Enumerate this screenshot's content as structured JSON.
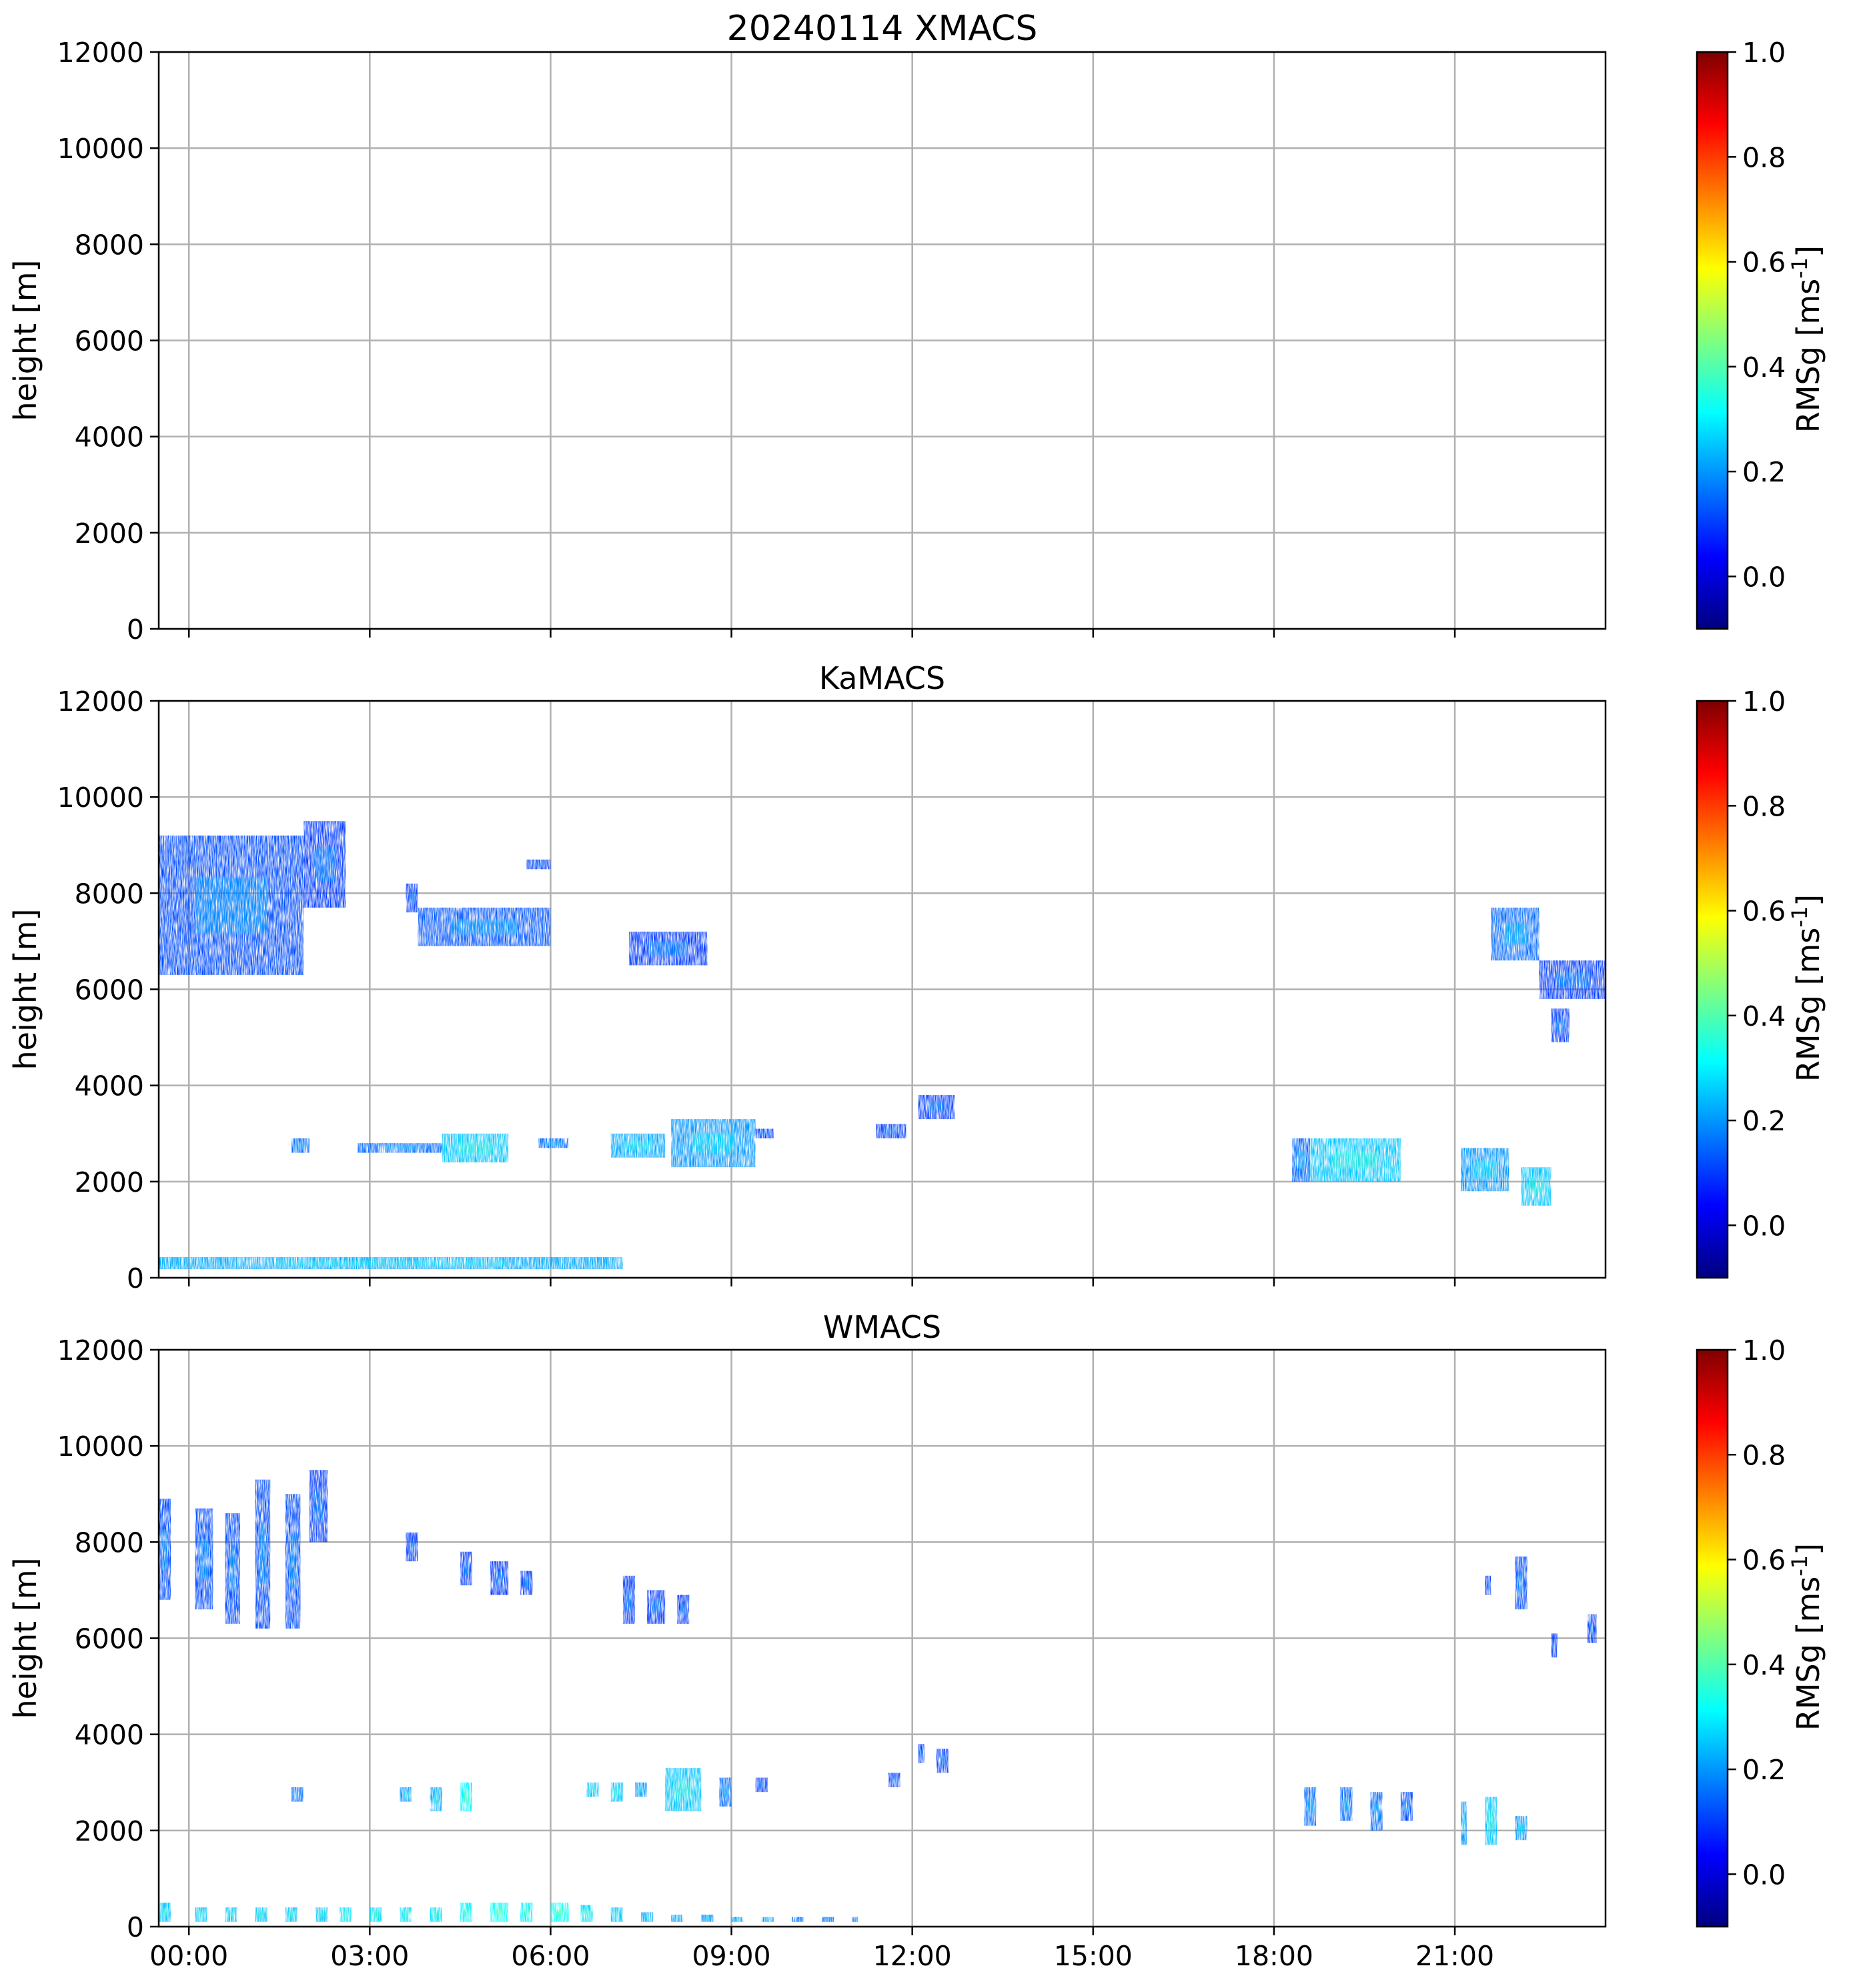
{
  "colormap": {
    "name": "jet",
    "stops": [
      "#00007f",
      "#0000ff",
      "#007fff",
      "#00ffff",
      "#7fff7f",
      "#ffff00",
      "#ff7f00",
      "#ff0000",
      "#7f0000"
    ]
  },
  "chart_data": [
    {
      "type": "heatmap",
      "title": "20240114 XMACS",
      "ylabel": "height [m]",
      "ylim": [
        0,
        12000
      ],
      "yticks": [
        "0",
        "2000",
        "4000",
        "6000",
        "8000",
        "10000",
        "12000"
      ],
      "xlim_hours": [
        -0.5,
        23.5
      ],
      "show_xticklabels": false,
      "colorbar": {
        "label": "RMSg [ms",
        "label_sup": "-1",
        "label_end": "]",
        "range": [
          -0.1,
          1.0
        ],
        "ticks": [
          "0.0",
          "0.2",
          "0.4",
          "0.6",
          "0.8",
          "1.0"
        ]
      },
      "features": []
    },
    {
      "type": "heatmap",
      "title": "KaMACS",
      "ylabel": "height [m]",
      "ylim": [
        0,
        12000
      ],
      "yticks": [
        "0",
        "2000",
        "4000",
        "6000",
        "8000",
        "10000",
        "12000"
      ],
      "xlim_hours": [
        -0.5,
        23.5
      ],
      "show_xticklabels": false,
      "colorbar": {
        "label": "RMSg [ms",
        "label_sup": "-1",
        "label_end": "]",
        "range": [
          -0.1,
          1.0
        ],
        "ticks": [
          "0.0",
          "0.2",
          "0.4",
          "0.6",
          "0.8",
          "1.0"
        ]
      },
      "features": [
        {
          "t0": -0.5,
          "t1": 1.9,
          "h0": 6300,
          "h1": 9200,
          "rms": 0.12
        },
        {
          "t0": 1.9,
          "t1": 2.6,
          "h0": 7700,
          "h1": 9500,
          "rms": 0.1
        },
        {
          "t0": 3.6,
          "t1": 3.8,
          "h0": 7600,
          "h1": 8200,
          "rms": 0.1
        },
        {
          "t0": 3.8,
          "t1": 6.0,
          "h0": 6900,
          "h1": 7700,
          "rms": 0.13
        },
        {
          "t0": 5.6,
          "t1": 6.0,
          "h0": 8500,
          "h1": 8700,
          "rms": 0.1
        },
        {
          "t0": 7.3,
          "t1": 8.6,
          "h0": 6500,
          "h1": 7200,
          "rms": 0.1
        },
        {
          "t0": 1.7,
          "t1": 2.0,
          "h0": 2600,
          "h1": 2900,
          "rms": 0.15
        },
        {
          "t0": 2.8,
          "t1": 4.2,
          "h0": 2600,
          "h1": 2800,
          "rms": 0.15
        },
        {
          "t0": 4.2,
          "t1": 5.3,
          "h0": 2400,
          "h1": 3000,
          "rms": 0.25
        },
        {
          "t0": 5.8,
          "t1": 6.3,
          "h0": 2700,
          "h1": 2900,
          "rms": 0.15
        },
        {
          "t0": 7.0,
          "t1": 7.9,
          "h0": 2500,
          "h1": 3000,
          "rms": 0.22
        },
        {
          "t0": 8.0,
          "t1": 9.4,
          "h0": 2300,
          "h1": 3300,
          "rms": 0.2
        },
        {
          "t0": 9.4,
          "t1": 9.7,
          "h0": 2900,
          "h1": 3100,
          "rms": 0.1
        },
        {
          "t0": 11.4,
          "t1": 11.9,
          "h0": 2900,
          "h1": 3200,
          "rms": 0.1
        },
        {
          "t0": 12.1,
          "t1": 12.7,
          "h0": 3300,
          "h1": 3800,
          "rms": 0.1
        },
        {
          "t0": 18.3,
          "t1": 18.6,
          "h0": 2000,
          "h1": 2900,
          "rms": 0.15
        },
        {
          "t0": 18.6,
          "t1": 20.1,
          "h0": 2000,
          "h1": 2900,
          "rms": 0.25
        },
        {
          "t0": 21.1,
          "t1": 21.9,
          "h0": 1800,
          "h1": 2700,
          "rms": 0.2
        },
        {
          "t0": 22.1,
          "t1": 22.6,
          "h0": 1500,
          "h1": 2300,
          "rms": 0.25
        },
        {
          "t0": 21.6,
          "t1": 22.4,
          "h0": 6600,
          "h1": 7700,
          "rms": 0.15
        },
        {
          "t0": 22.4,
          "t1": 23.5,
          "h0": 5800,
          "h1": 6600,
          "rms": 0.1
        },
        {
          "t0": 22.6,
          "t1": 22.9,
          "h0": 4900,
          "h1": 5600,
          "rms": 0.1
        },
        {
          "t0": -0.5,
          "t1": 7.2,
          "h0": 180,
          "h1": 430,
          "rms": 0.22
        }
      ]
    },
    {
      "type": "heatmap",
      "title": "WMACS",
      "ylabel": "height [m]",
      "ylim": [
        0,
        12000
      ],
      "yticks": [
        "0",
        "2000",
        "4000",
        "6000",
        "8000",
        "10000",
        "12000"
      ],
      "xlim_hours": [
        -0.5,
        23.5
      ],
      "xticks_hours": [
        0,
        3,
        6,
        9,
        12,
        15,
        18,
        21
      ],
      "xticklabels": [
        "00:00",
        "03:00",
        "06:00",
        "09:00",
        "12:00",
        "15:00",
        "18:00",
        "21:00"
      ],
      "show_xticklabels": true,
      "colorbar": {
        "label": "RMSg [ms",
        "label_sup": "-1",
        "label_end": "]",
        "range": [
          -0.1,
          1.0
        ],
        "ticks": [
          "0.0",
          "0.2",
          "0.4",
          "0.6",
          "0.8",
          "1.0"
        ]
      },
      "features": [
        {
          "t0": -0.5,
          "t1": -0.3,
          "h0": 6800,
          "h1": 8900,
          "rms": 0.12
        },
        {
          "t0": 0.1,
          "t1": 0.4,
          "h0": 6600,
          "h1": 8700,
          "rms": 0.12
        },
        {
          "t0": 0.6,
          "t1": 0.85,
          "h0": 6300,
          "h1": 8600,
          "rms": 0.12
        },
        {
          "t0": 1.1,
          "t1": 1.35,
          "h0": 6200,
          "h1": 9300,
          "rms": 0.12
        },
        {
          "t0": 1.6,
          "t1": 1.85,
          "h0": 6200,
          "h1": 9000,
          "rms": 0.12
        },
        {
          "t0": 2.0,
          "t1": 2.3,
          "h0": 8000,
          "h1": 9500,
          "rms": 0.1
        },
        {
          "t0": 3.6,
          "t1": 3.8,
          "h0": 7600,
          "h1": 8200,
          "rms": 0.1
        },
        {
          "t0": 4.5,
          "t1": 4.7,
          "h0": 7100,
          "h1": 7800,
          "rms": 0.1
        },
        {
          "t0": 5.0,
          "t1": 5.3,
          "h0": 6900,
          "h1": 7600,
          "rms": 0.1
        },
        {
          "t0": 5.5,
          "t1": 5.7,
          "h0": 6900,
          "h1": 7400,
          "rms": 0.1
        },
        {
          "t0": 7.2,
          "t1": 7.4,
          "h0": 6300,
          "h1": 7300,
          "rms": 0.1
        },
        {
          "t0": 7.6,
          "t1": 7.9,
          "h0": 6300,
          "h1": 7000,
          "rms": 0.1
        },
        {
          "t0": 8.1,
          "t1": 8.3,
          "h0": 6300,
          "h1": 6900,
          "rms": 0.1
        },
        {
          "t0": 1.7,
          "t1": 1.9,
          "h0": 2600,
          "h1": 2900,
          "rms": 0.15
        },
        {
          "t0": 3.5,
          "t1": 3.7,
          "h0": 2600,
          "h1": 2900,
          "rms": 0.2
        },
        {
          "t0": 4.0,
          "t1": 4.2,
          "h0": 2400,
          "h1": 2900,
          "rms": 0.22
        },
        {
          "t0": 4.5,
          "t1": 4.7,
          "h0": 2400,
          "h1": 3000,
          "rms": 0.3
        },
        {
          "t0": 6.6,
          "t1": 6.8,
          "h0": 2700,
          "h1": 3000,
          "rms": 0.25
        },
        {
          "t0": 7.0,
          "t1": 7.2,
          "h0": 2600,
          "h1": 3000,
          "rms": 0.25
        },
        {
          "t0": 7.4,
          "t1": 7.6,
          "h0": 2700,
          "h1": 3000,
          "rms": 0.2
        },
        {
          "t0": 7.9,
          "t1": 8.5,
          "h0": 2400,
          "h1": 3300,
          "rms": 0.25
        },
        {
          "t0": 8.8,
          "t1": 9.0,
          "h0": 2500,
          "h1": 3100,
          "rms": 0.15
        },
        {
          "t0": 9.4,
          "t1": 9.6,
          "h0": 2800,
          "h1": 3100,
          "rms": 0.1
        },
        {
          "t0": 11.6,
          "t1": 11.8,
          "h0": 2900,
          "h1": 3200,
          "rms": 0.1
        },
        {
          "t0": 12.1,
          "t1": 12.2,
          "h0": 3400,
          "h1": 3800,
          "rms": 0.1
        },
        {
          "t0": 12.4,
          "t1": 12.6,
          "h0": 3200,
          "h1": 3700,
          "rms": 0.1
        },
        {
          "t0": 18.5,
          "t1": 18.7,
          "h0": 2100,
          "h1": 2900,
          "rms": 0.15
        },
        {
          "t0": 19.1,
          "t1": 19.3,
          "h0": 2200,
          "h1": 2900,
          "rms": 0.15
        },
        {
          "t0": 19.6,
          "t1": 19.8,
          "h0": 2000,
          "h1": 2800,
          "rms": 0.15
        },
        {
          "t0": 20.1,
          "t1": 20.3,
          "h0": 2200,
          "h1": 2800,
          "rms": 0.12
        },
        {
          "t0": 21.1,
          "t1": 21.2,
          "h0": 1700,
          "h1": 2600,
          "rms": 0.2
        },
        {
          "t0": 21.5,
          "t1": 21.7,
          "h0": 1700,
          "h1": 2700,
          "rms": 0.25
        },
        {
          "t0": 22.0,
          "t1": 22.2,
          "h0": 1800,
          "h1": 2300,
          "rms": 0.2
        },
        {
          "t0": 21.5,
          "t1": 21.6,
          "h0": 6900,
          "h1": 7300,
          "rms": 0.1
        },
        {
          "t0": 22.0,
          "t1": 22.2,
          "h0": 6600,
          "h1": 7700,
          "rms": 0.12
        },
        {
          "t0": 22.6,
          "t1": 22.7,
          "h0": 5600,
          "h1": 6100,
          "rms": 0.1
        },
        {
          "t0": 23.2,
          "t1": 23.35,
          "h0": 5900,
          "h1": 6500,
          "rms": 0.1
        },
        {
          "t0": -0.5,
          "t1": -0.3,
          "h0": 100,
          "h1": 500,
          "rms": 0.25
        },
        {
          "t0": 0.1,
          "t1": 0.3,
          "h0": 100,
          "h1": 400,
          "rms": 0.25
        },
        {
          "t0": 0.6,
          "t1": 0.8,
          "h0": 100,
          "h1": 400,
          "rms": 0.25
        },
        {
          "t0": 1.1,
          "t1": 1.3,
          "h0": 100,
          "h1": 400,
          "rms": 0.25
        },
        {
          "t0": 1.6,
          "t1": 1.8,
          "h0": 100,
          "h1": 400,
          "rms": 0.25
        },
        {
          "t0": 2.1,
          "t1": 2.3,
          "h0": 100,
          "h1": 400,
          "rms": 0.25
        },
        {
          "t0": 2.5,
          "t1": 2.7,
          "h0": 100,
          "h1": 400,
          "rms": 0.28
        },
        {
          "t0": 3.0,
          "t1": 3.2,
          "h0": 100,
          "h1": 400,
          "rms": 0.28
        },
        {
          "t0": 3.5,
          "t1": 3.7,
          "h0": 100,
          "h1": 400,
          "rms": 0.28
        },
        {
          "t0": 4.0,
          "t1": 4.2,
          "h0": 100,
          "h1": 400,
          "rms": 0.28
        },
        {
          "t0": 4.5,
          "t1": 4.7,
          "h0": 100,
          "h1": 500,
          "rms": 0.3
        },
        {
          "t0": 5.0,
          "t1": 5.3,
          "h0": 100,
          "h1": 500,
          "rms": 0.32
        },
        {
          "t0": 5.5,
          "t1": 5.7,
          "h0": 100,
          "h1": 500,
          "rms": 0.3
        },
        {
          "t0": 6.0,
          "t1": 6.3,
          "h0": 100,
          "h1": 500,
          "rms": 0.32
        },
        {
          "t0": 6.5,
          "t1": 6.7,
          "h0": 100,
          "h1": 450,
          "rms": 0.28
        },
        {
          "t0": 7.0,
          "t1": 7.2,
          "h0": 100,
          "h1": 400,
          "rms": 0.25
        },
        {
          "t0": 7.5,
          "t1": 7.7,
          "h0": 100,
          "h1": 300,
          "rms": 0.22
        },
        {
          "t0": 8.0,
          "t1": 8.2,
          "h0": 100,
          "h1": 250,
          "rms": 0.2
        },
        {
          "t0": 8.5,
          "t1": 8.7,
          "h0": 100,
          "h1": 250,
          "rms": 0.2
        },
        {
          "t0": 9.0,
          "t1": 9.2,
          "h0": 100,
          "h1": 200,
          "rms": 0.2
        },
        {
          "t0": 9.5,
          "t1": 9.7,
          "h0": 100,
          "h1": 200,
          "rms": 0.2
        },
        {
          "t0": 10.0,
          "t1": 10.2,
          "h0": 100,
          "h1": 200,
          "rms": 0.15
        },
        {
          "t0": 10.5,
          "t1": 10.7,
          "h0": 100,
          "h1": 200,
          "rms": 0.15
        },
        {
          "t0": 11.0,
          "t1": 11.1,
          "h0": 100,
          "h1": 200,
          "rms": 0.15
        }
      ]
    }
  ]
}
